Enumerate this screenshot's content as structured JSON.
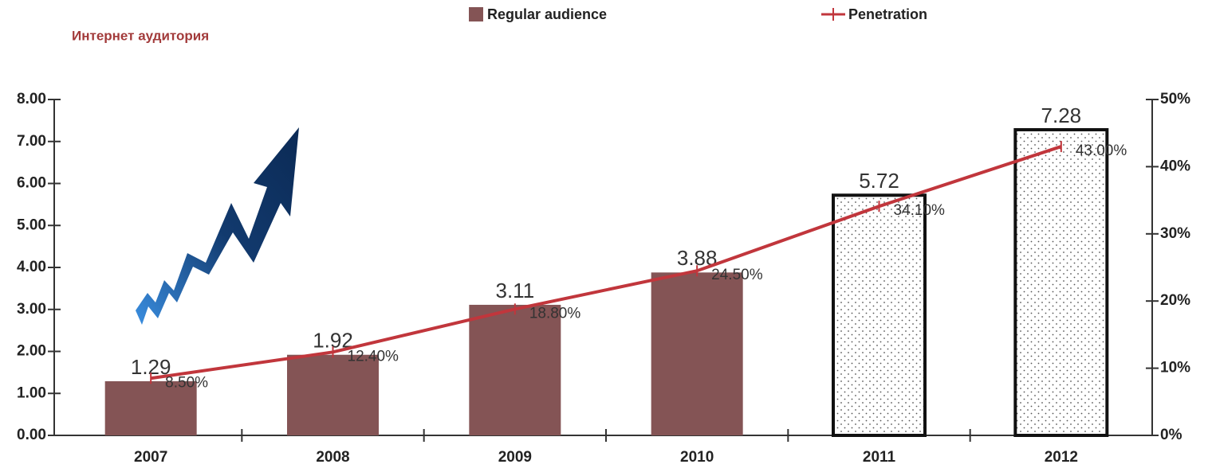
{
  "chart_data": {
    "type": "bar-line",
    "title": "Интернет аудитория",
    "categories": [
      "2007",
      "2008",
      "2009",
      "2010",
      "2011",
      "2012"
    ],
    "series": [
      {
        "name": "Regular audience",
        "type": "bar",
        "color": "#845455",
        "values": [
          1.29,
          1.92,
          3.11,
          3.88,
          5.72,
          7.28
        ],
        "point_styles": [
          "solid",
          "solid",
          "solid",
          "solid",
          "dotted",
          "dotted"
        ]
      },
      {
        "name": "Penetration",
        "type": "line",
        "axis": "y2",
        "color": "#c1363c",
        "values": [
          8.5,
          12.4,
          18.8,
          24.5,
          34.1,
          43.0
        ],
        "value_labels": [
          "8.50%",
          "12.40%",
          "18.80%",
          "24.50%",
          "34.10%",
          "43.00%"
        ]
      }
    ],
    "ylim": [
      0,
      8
    ],
    "yticks": [
      {
        "value": 0,
        "label": "0.00"
      },
      {
        "value": 1,
        "label": "1.00"
      },
      {
        "value": 2,
        "label": "2.00"
      },
      {
        "value": 3,
        "label": "3.00"
      },
      {
        "value": 4,
        "label": "4.00"
      },
      {
        "value": 5,
        "label": "5.00"
      },
      {
        "value": 6,
        "label": "6.00"
      },
      {
        "value": 7,
        "label": "7.00"
      },
      {
        "value": 8,
        "label": "8.00"
      }
    ],
    "y2lim": [
      0,
      50
    ],
    "y2ticks": [
      {
        "value": 0,
        "label": "0%"
      },
      {
        "value": 10,
        "label": "10%"
      },
      {
        "value": 20,
        "label": "20%"
      },
      {
        "value": 30,
        "label": "30%"
      },
      {
        "value": 40,
        "label": "40%"
      },
      {
        "value": 50,
        "label": "50%"
      }
    ]
  }
}
